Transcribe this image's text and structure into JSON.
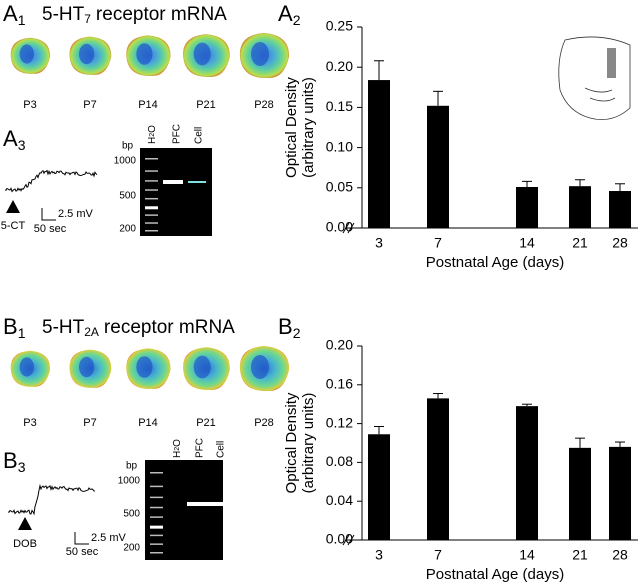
{
  "panels": {
    "A1": {
      "letter": "A",
      "sub": "1",
      "title_main": "5-HT",
      "title_sub": "7",
      "title_rest": "receptor mRNA",
      "ages": [
        "P3",
        "P7",
        "P14",
        "P21",
        "P28"
      ]
    },
    "A3": {
      "letter": "A",
      "sub": "3",
      "drug": "5-CT",
      "scale_mv": "2.5 mV",
      "scale_sec": "50 sec",
      "gel_unit": "bp",
      "gel_sizes": [
        "1000",
        "500",
        "200"
      ],
      "lane_water_main": "H",
      "lane_water_sub": "2",
      "lane_water_rest": "O",
      "lanes": [
        "PFC",
        "Cell"
      ]
    },
    "B1": {
      "letter": "B",
      "sub": "1",
      "title_main": "5-HT",
      "title_sub": "2A",
      "title_rest": "receptor mRNA",
      "ages": [
        "P3",
        "P7",
        "P14",
        "P21",
        "P28"
      ]
    },
    "B3": {
      "letter": "B",
      "sub": "3",
      "drug": "DOB",
      "scale_mv": "2.5 mV",
      "scale_sec": "50 sec",
      "gel_unit": "bp",
      "gel_sizes": [
        "1000",
        "500",
        "200"
      ],
      "lane_water_main": "H",
      "lane_water_sub": "2",
      "lane_water_rest": "O",
      "lanes": [
        "PFC",
        "Cell"
      ]
    }
  },
  "chart_data": [
    {
      "type": "bar",
      "panel": "A",
      "panel_sub": "2",
      "ylabel": [
        "Optical Density",
        "(arbitrary units)"
      ],
      "xlabel": "Postnatal Age (days)",
      "categories": [
        "3",
        "7",
        "14",
        "21",
        "28"
      ],
      "values": [
        0.184,
        0.152,
        0.051,
        0.052,
        0.046
      ],
      "errors": [
        0.024,
        0.018,
        0.007,
        0.008,
        0.009
      ],
      "color": "#000000",
      "ylim": [
        0,
        0.25
      ],
      "yticks": [
        {
          "value": 0,
          "label": "0.00"
        },
        {
          "value": 0.05,
          "label": "0.05"
        },
        {
          "value": 0.1,
          "label": "0.10"
        },
        {
          "value": 0.15,
          "label": "0.15"
        },
        {
          "value": 0.2,
          "label": "0.20"
        },
        {
          "value": 0.25,
          "label": "0.25"
        }
      ]
    },
    {
      "type": "bar",
      "panel": "B",
      "panel_sub": "2",
      "ylabel": [
        "Optical Density",
        "(arbitrary units)"
      ],
      "xlabel": "Postnatal Age (days)",
      "categories": [
        "3",
        "7",
        "14",
        "21",
        "28"
      ],
      "values": [
        0.109,
        0.146,
        0.138,
        0.095,
        0.096
      ],
      "errors": [
        0.008,
        0.005,
        0.002,
        0.01,
        0.005
      ],
      "color": "#000000",
      "ylim": [
        0,
        0.2
      ],
      "yticks": [
        {
          "value": 0,
          "label": "0.00"
        },
        {
          "value": 0.04,
          "label": "0.04"
        },
        {
          "value": 0.08,
          "label": "0.08"
        },
        {
          "value": 0.12,
          "label": "0.12"
        },
        {
          "value": 0.16,
          "label": "0.16"
        },
        {
          "value": 0.2,
          "label": "0.20"
        }
      ]
    }
  ]
}
